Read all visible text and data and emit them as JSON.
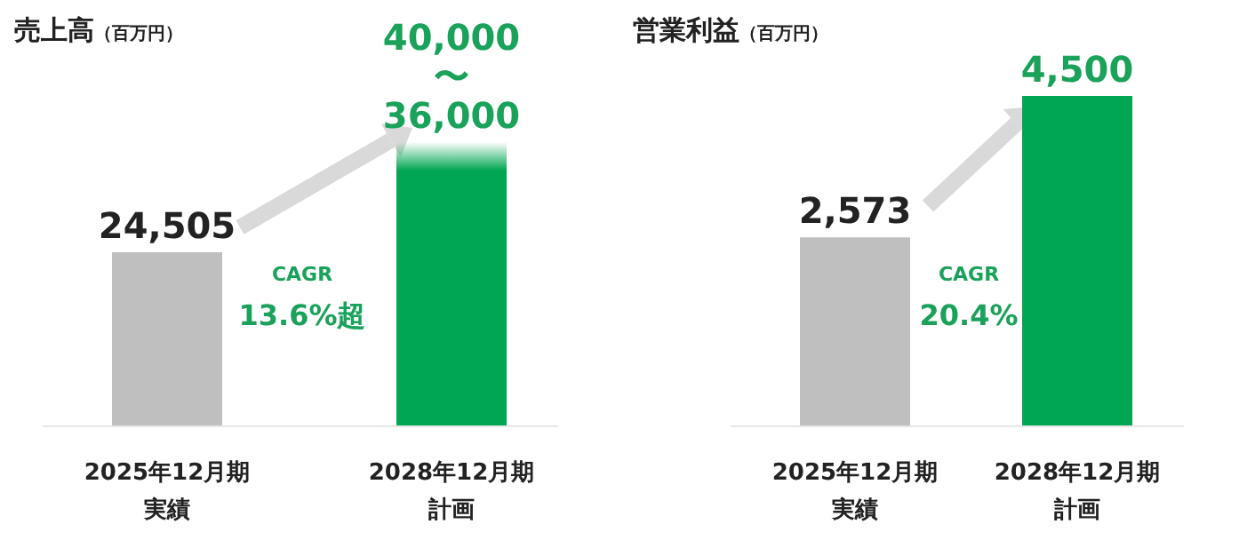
{
  "chart_data": [
    {
      "type": "bar",
      "title": "売上高",
      "subtitle": "（百万円）",
      "categories": [
        "2025年12月期実績",
        "2028年12月期計画"
      ],
      "stacked": true,
      "series": [
        {
          "color": "#bfbfbf",
          "colors": [
            "#bfbfbf",
            "#00a651"
          ],
          "values": [
            24505,
            36000
          ],
          "value_labels": [
            "24,505",
            "36,000"
          ]
        },
        {
          "color": "#00a651",
          "values": [
            null,
            4000
          ]
        }
      ],
      "annotations": [
        "CAGR",
        "13.6%超",
        {
          "text": "40,000\n〜",
          "x": "2028年12月期計画",
          "y": 40000
        }
      ]
    },
    {
      "type": "bar",
      "title": "営業利益",
      "subtitle": "（百万円）",
      "categories": [
        "2025年12月期実績",
        "2028年12月期計画"
      ],
      "colors": [
        "#bfbfbf",
        "#00a651"
      ],
      "values": [
        2573,
        4500
      ],
      "value_labels": [
        "2,573",
        "4,500"
      ],
      "annotations": [
        "CAGR",
        "20.4%"
      ]
    }
  ]
}
